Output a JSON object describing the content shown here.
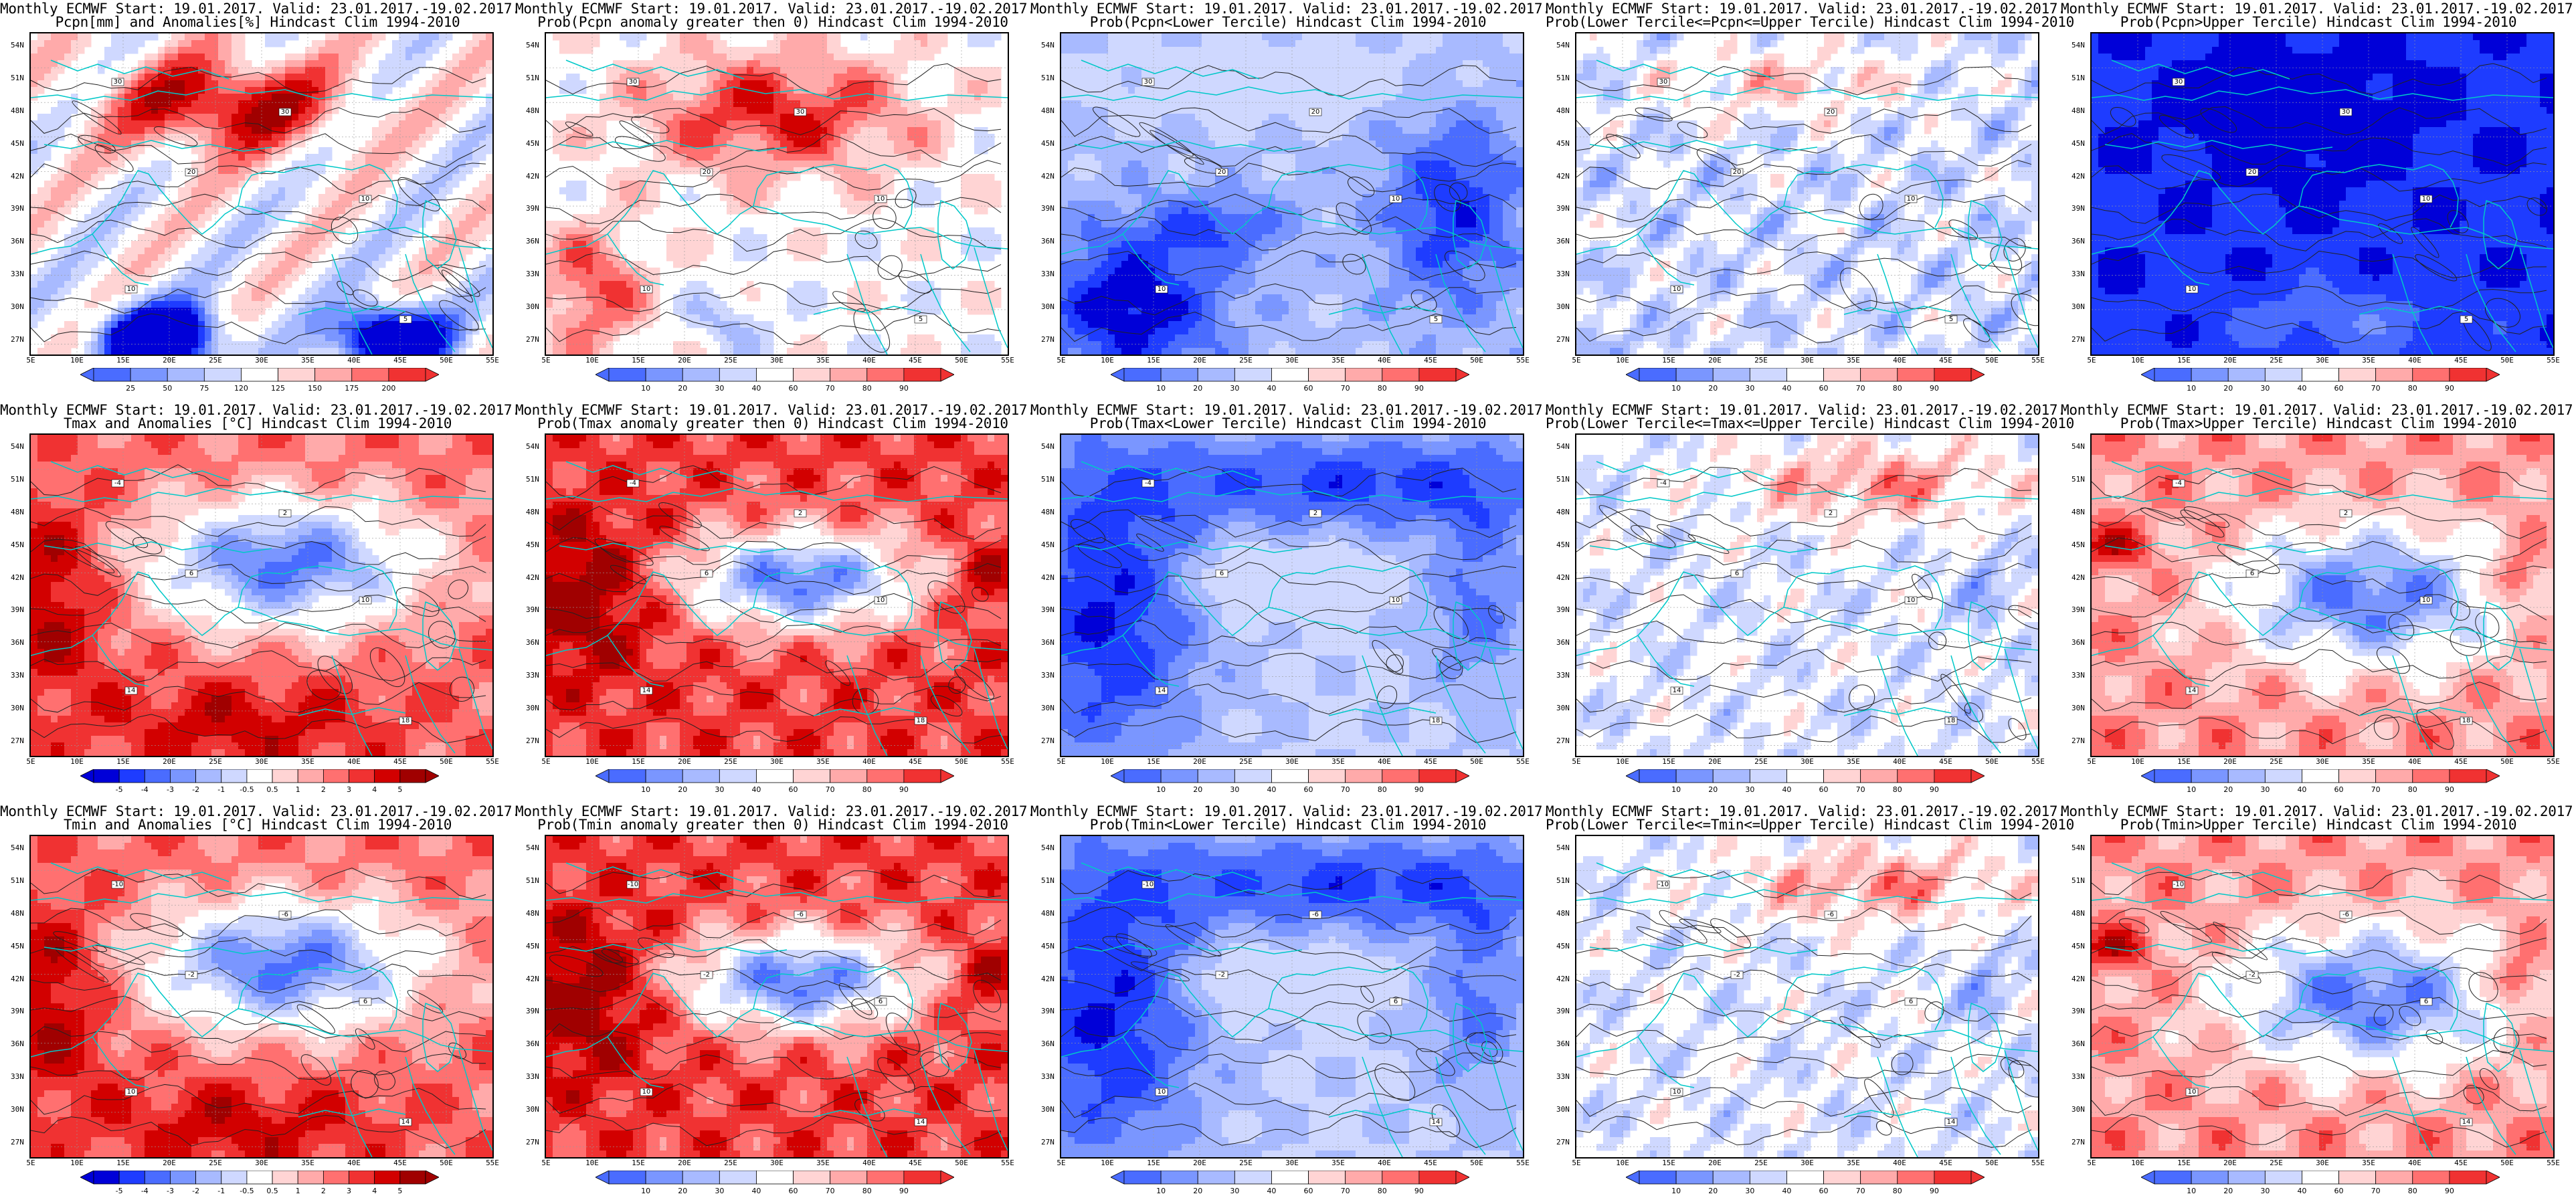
{
  "figure": {
    "rows": [
      {
        "variable": "Pcpn",
        "panels": [
          {
            "title_line1": "Monthly ECMWF Start: 19.01.2017. Valid: 23.01.2017.-19.02.2017.",
            "title_line2": "Pcpn[mm] and Anomalies[%] Hindcast Clim 1994-2010",
            "colorbar_ticks": [
              "25",
              "50",
              "75",
              "120",
              "125",
              "150",
              "175",
              "200"
            ],
            "contour_labels": [
              "30",
              "30",
              "20",
              "10",
              "10",
              "5"
            ]
          },
          {
            "title_line1": "Monthly ECMWF Start: 19.01.2017. Valid: 23.01.2017.-19.02.2017.",
            "title_line2": "Prob(Pcpn anomaly greater then 0) Hindcast Clim 1994-2010",
            "colorbar_ticks": [
              "10",
              "20",
              "30",
              "40",
              "60",
              "70",
              "80",
              "90"
            ],
            "contour_labels": [
              "30",
              "30",
              "20",
              "10",
              "10",
              "5"
            ]
          },
          {
            "title_line1": "Monthly ECMWF Start: 19.01.2017. Valid: 23.01.2017.-19.02.2017.",
            "title_line2": "Prob(Pcpn<Lower Tercile) Hindcast Clim 1994-2010",
            "colorbar_ticks": [
              "10",
              "20",
              "30",
              "40",
              "60",
              "70",
              "80",
              "90"
            ],
            "contour_labels": [
              "30",
              "20",
              "20",
              "10",
              "10",
              "5"
            ]
          },
          {
            "title_line1": "Monthly ECMWF Start: 19.01.2017. Valid: 23.01.2017.-19.02.2017.",
            "title_line2": "Prob(Lower Tercile<=Pcpn<=Upper Tercile) Hindcast Clim 1994-2010",
            "colorbar_ticks": [
              "10",
              "20",
              "30",
              "40",
              "60",
              "70",
              "80",
              "90"
            ],
            "contour_labels": [
              "30",
              "20",
              "20",
              "10",
              "10",
              "5"
            ]
          },
          {
            "title_line1": "Monthly ECMWF Start: 19.01.2017. Valid: 23.01.2017.-19.02.2017.",
            "title_line2": "Prob(Pcpn>Upper Tercile) Hindcast Clim 1994-2010",
            "colorbar_ticks": [
              "10",
              "20",
              "30",
              "40",
              "60",
              "70",
              "80",
              "90"
            ],
            "contour_labels": [
              "30",
              "30",
              "20",
              "10",
              "10",
              "5"
            ]
          }
        ]
      },
      {
        "variable": "Tmax",
        "panels": [
          {
            "title_line1": "Monthly ECMWF Start: 19.01.2017. Valid: 23.01.2017.-19.02.2017.",
            "title_line2": "Tmax and Anomalies [°C] Hindcast Clim 1994-2010",
            "colorbar_ticks": [
              "-5",
              "-4",
              "-3",
              "-2",
              "-1",
              "-0.5",
              "0.5",
              "1",
              "2",
              "3",
              "4",
              "5"
            ],
            "contour_labels": [
              "-4",
              "2",
              "6",
              "10",
              "14",
              "18"
            ]
          },
          {
            "title_line1": "Monthly ECMWF Start: 19.01.2017. Valid: 23.01.2017.-19.02.2017.",
            "title_line2": "Prob(Tmax anomaly greater then 0) Hindcast Clim 1994-2010",
            "colorbar_ticks": [
              "10",
              "20",
              "30",
              "40",
              "60",
              "70",
              "80",
              "90"
            ],
            "contour_labels": [
              "-4",
              "2",
              "6",
              "10",
              "14",
              "18"
            ]
          },
          {
            "title_line1": "Monthly ECMWF Start: 19.01.2017. Valid: 23.01.2017.-19.02.2017.",
            "title_line2": "Prob(Tmax<Lower Tercile) Hindcast Clim 1994-2010",
            "colorbar_ticks": [
              "10",
              "20",
              "30",
              "40",
              "60",
              "70",
              "80",
              "90"
            ],
            "contour_labels": [
              "-4",
              "2",
              "6",
              "10",
              "14",
              "18"
            ]
          },
          {
            "title_line1": "Monthly ECMWF Start: 19.01.2017. Valid: 23.01.2017.-19.02.2017.",
            "title_line2": "Prob(Lower Tercile<=Tmax<=Upper Tercile) Hindcast Clim 1994-2010",
            "colorbar_ticks": [
              "10",
              "20",
              "30",
              "40",
              "60",
              "70",
              "80",
              "90"
            ],
            "contour_labels": [
              "-4",
              "2",
              "6",
              "10",
              "14",
              "18"
            ]
          },
          {
            "title_line1": "Monthly ECMWF Start: 19.01.2017. Valid: 23.01.2017.-19.02.2017.",
            "title_line2": "Prob(Tmax>Upper Tercile) Hindcast Clim 1994-2010",
            "colorbar_ticks": [
              "10",
              "20",
              "30",
              "40",
              "60",
              "70",
              "80",
              "90"
            ],
            "contour_labels": [
              "-4",
              "2",
              "6",
              "10",
              "14",
              "18"
            ]
          }
        ]
      },
      {
        "variable": "Tmin",
        "panels": [
          {
            "title_line1": "Monthly ECMWF Start: 19.01.2017. Valid: 23.01.2017.-19.02.2017.",
            "title_line2": "Tmin and Anomalies [°C] Hindcast Clim 1994-2010",
            "colorbar_ticks": [
              "-5",
              "-4",
              "-3",
              "-2",
              "-1",
              "-0.5",
              "0.5",
              "1",
              "2",
              "3",
              "4",
              "5"
            ],
            "contour_labels": [
              "-10",
              "-6",
              "-2",
              "6",
              "10",
              "14"
            ]
          },
          {
            "title_line1": "Monthly ECMWF Start: 19.01.2017. Valid: 23.01.2017.-19.02.2017.",
            "title_line2": "Prob(Tmin anomaly greater then 0) Hindcast Clim 1994-2010",
            "colorbar_ticks": [
              "10",
              "20",
              "30",
              "40",
              "60",
              "70",
              "80",
              "90"
            ],
            "contour_labels": [
              "-10",
              "-6",
              "-2",
              "6",
              "10",
              "14"
            ]
          },
          {
            "title_line1": "Monthly ECMWF Start: 19.01.2017. Valid: 23.01.2017.-19.02.2017.",
            "title_line2": "Prob(Tmin<Lower Tercile) Hindcast Clim 1994-2010",
            "colorbar_ticks": [
              "10",
              "20",
              "30",
              "40",
              "60",
              "70",
              "80",
              "90"
            ],
            "contour_labels": [
              "-10",
              "-6",
              "-2",
              "6",
              "10",
              "14"
            ]
          },
          {
            "title_line1": "Monthly ECMWF Start: 19.01.2017. Valid: 23.01.2017.-19.02.2017.",
            "title_line2": "Prob(Lower Tercile<=Tmin<=Upper Tercile) Hindcast Clim 1994-2010",
            "colorbar_ticks": [
              "10",
              "20",
              "30",
              "40",
              "60",
              "70",
              "80",
              "90"
            ],
            "contour_labels": [
              "-10",
              "-6",
              "-2",
              "6",
              "10",
              "14"
            ]
          },
          {
            "title_line1": "Monthly ECMWF Start: 19.01.2017. Valid: 23.01.2017.-19.02.2017.",
            "title_line2": "Prob(Tmin>Upper Tercile) Hindcast Clim 1994-2010",
            "colorbar_ticks": [
              "10",
              "20",
              "30",
              "40",
              "60",
              "70",
              "80",
              "90"
            ],
            "contour_labels": [
              "-10",
              "-6",
              "-2",
              "6",
              "10",
              "14"
            ]
          }
        ]
      }
    ],
    "lat_labels": [
      "54N",
      "51N",
      "48N",
      "45N",
      "42N",
      "39N",
      "36N",
      "33N",
      "30N",
      "27N"
    ],
    "lon_labels": [
      "5E",
      "10E",
      "15E",
      "20E",
      "25E",
      "30E",
      "35E",
      "40E",
      "45E",
      "50E",
      "55E"
    ],
    "colors": {
      "blues": [
        "#0000d8",
        "#1e3cff",
        "#4a6cff",
        "#7a96ff",
        "#a8baff",
        "#cfd8ff"
      ],
      "reds": [
        "#ffd4d4",
        "#ffaaaa",
        "#ff7070",
        "#f03232",
        "#d20000",
        "#a00000"
      ],
      "coast": "#00c8c8",
      "contour": "#222222"
    }
  }
}
